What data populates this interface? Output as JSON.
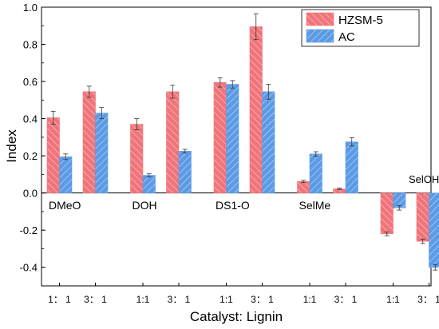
{
  "chart_data": {
    "type": "bar",
    "title": "",
    "xlabel": "Catalyst: Lignin",
    "ylabel": "Index",
    "ylim": [
      -0.5,
      1.0
    ],
    "yticks": [
      "-0.4",
      "-0.2",
      "0.0",
      "0.2",
      "0.4",
      "0.6",
      "0.8",
      "1.0"
    ],
    "grid": false,
    "legend_position": "top-right",
    "groups": [
      {
        "label": "DMeO",
        "ratios": [
          "1： 1",
          "3： 1"
        ]
      },
      {
        "label": "DOH",
        "ratios": [
          "1:1",
          "3： 1"
        ]
      },
      {
        "label": "DS1-O",
        "ratios": [
          "1:1",
          "3： 1"
        ]
      },
      {
        "label": "SelMe",
        "ratios": [
          "1:1",
          "3： 1"
        ]
      },
      {
        "label": "SelOH",
        "ratios": [
          "1:1",
          "3： 1"
        ]
      }
    ],
    "series": [
      {
        "name": "HZSM-5",
        "color": "#f0747a",
        "values": [
          0.405,
          0.545,
          0.37,
          0.545,
          0.595,
          0.895,
          0.062,
          0.022,
          -0.22,
          -0.26
        ],
        "errors": [
          0.035,
          0.03,
          0.03,
          0.035,
          0.025,
          0.07,
          0.006,
          0.004,
          0.01,
          0.012
        ]
      },
      {
        "name": "AC",
        "color": "#5b9be6",
        "values": [
          0.195,
          0.43,
          0.095,
          0.225,
          0.585,
          0.545,
          0.21,
          0.275,
          -0.08,
          -0.4
        ],
        "errors": [
          0.015,
          0.03,
          0.008,
          0.01,
          0.02,
          0.04,
          0.012,
          0.022,
          0.012,
          0.015
        ]
      }
    ]
  }
}
